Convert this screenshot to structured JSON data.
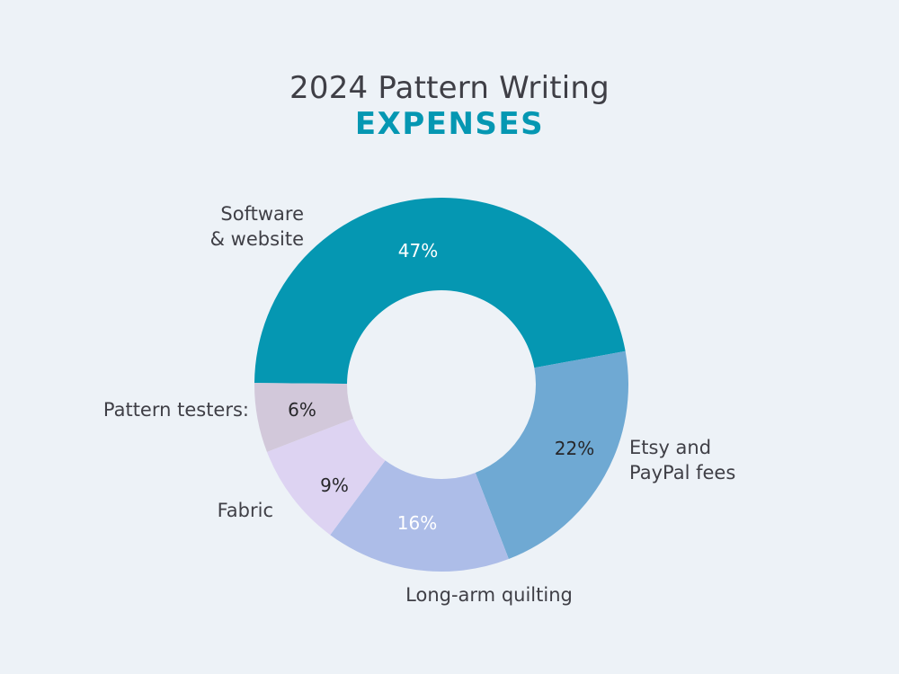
{
  "colors": {
    "background": "#edf2f7",
    "title": "#3f3f46",
    "subtitle": "#0597b2",
    "label": "#3f3f46"
  },
  "chart_data": {
    "type": "pie",
    "title": "2024 Pattern Writing",
    "subtitle": "EXPENSES",
    "donut": true,
    "legend": "none",
    "slices": [
      {
        "label": "Software & website",
        "value": 47,
        "display": "47%",
        "color": "#0597b2",
        "text_color": "#ffffff"
      },
      {
        "label": "Etsy and PayPal fees",
        "value": 22,
        "display": "22%",
        "color": "#6fa9d3",
        "text_color": "#27272a"
      },
      {
        "label": "Long-arm quilting",
        "value": 16,
        "display": "16%",
        "color": "#adbde8",
        "text_color": "#ffffff"
      },
      {
        "label": "Fabric",
        "value": 9,
        "display": "9%",
        "color": "#ddd3f2",
        "text_color": "#27272a"
      },
      {
        "label": "Pattern testers:",
        "value": 6,
        "display": "6%",
        "color": "#d2c8da",
        "text_color": "#27272a"
      }
    ]
  }
}
